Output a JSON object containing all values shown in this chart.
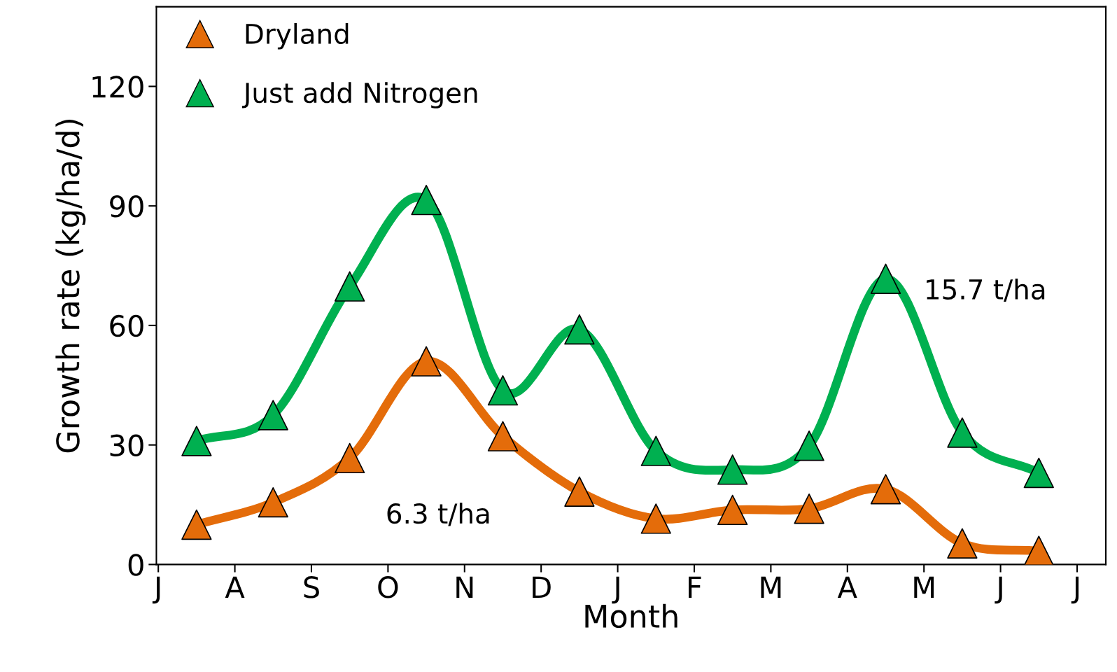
{
  "chart_data": {
    "type": "line",
    "xlabel": "Month",
    "ylabel": "Growth rate (kg/ha/d)",
    "categories": [
      "J",
      null,
      "A",
      null,
      "S",
      null,
      "O",
      null,
      "N",
      null,
      "D",
      null,
      "J",
      null,
      "F",
      null,
      "M",
      null,
      "A",
      null,
      "M",
      null,
      "J",
      null,
      "J"
    ],
    "series": [
      {
        "name": "Dryland",
        "color": "#e46c0a",
        "values": [
          null,
          10,
          null,
          15.6,
          null,
          26.7,
          null,
          51,
          null,
          32.2,
          null,
          18.3,
          null,
          11.5,
          null,
          13.7,
          null,
          14,
          null,
          18.9,
          null,
          5.3,
          null,
          3.4,
          null
        ]
      },
      {
        "name": "Just add Nitrogen",
        "color": "#00b050",
        "values": [
          null,
          31,
          null,
          37.5,
          null,
          69.8,
          null,
          91.5,
          null,
          43.7,
          null,
          59,
          null,
          28.5,
          null,
          23.8,
          null,
          29.8,
          null,
          71.7,
          null,
          33.1,
          null,
          23,
          null
        ]
      }
    ],
    "ylim": [
      0,
      140
    ],
    "yticks": [
      0,
      30,
      60,
      90,
      120
    ],
    "annotations": [
      "15.7 t/ha",
      "6.3 t/ha"
    ],
    "marker": "triangle",
    "line_style": "solid",
    "legend": "top left"
  }
}
